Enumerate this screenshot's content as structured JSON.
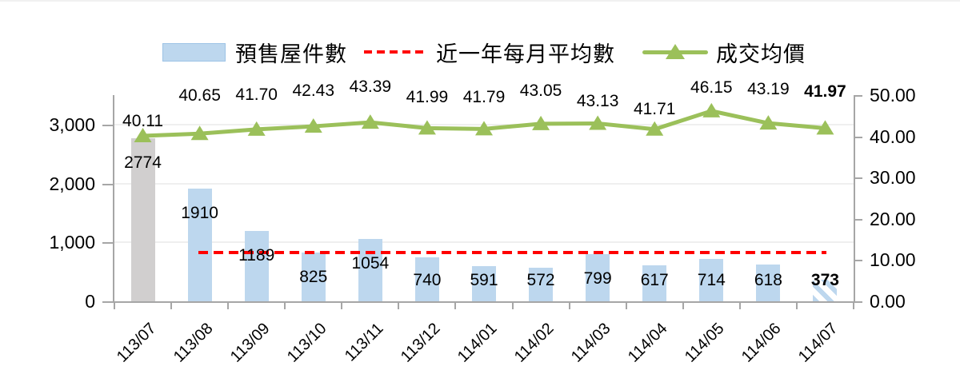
{
  "legend": {
    "bar_label": "預售屋件數",
    "avg_label": "近一年每月平均數",
    "price_label": "成交均價"
  },
  "colors": {
    "bar": "#BDD7EE",
    "bar_first": "#D1CFCF",
    "line": "#9BC05A",
    "avg_line": "#FF0000",
    "axis": "#A6A6A6",
    "grid": "#EFEFEF",
    "text": "#000000"
  },
  "chart_data": {
    "type": "combo-bar-line",
    "categories": [
      "113/07",
      "113/08",
      "113/09",
      "113/10",
      "113/11",
      "113/12",
      "114/01",
      "114/02",
      "114/03",
      "114/04",
      "114/05",
      "114/06",
      "114/07"
    ],
    "series": [
      {
        "name": "預售屋件數",
        "type": "bar",
        "axis": "left",
        "values": [
          2774,
          1910,
          1189,
          825,
          1054,
          740,
          591,
          572,
          799,
          617,
          714,
          618,
          373
        ],
        "labels": [
          "2774",
          "1910",
          "1189",
          "825",
          "1054",
          "740",
          "591",
          "572",
          "799",
          "617",
          "714",
          "618",
          "373"
        ],
        "first_bar_style": "solid-gray",
        "last_bar_style": "hatched",
        "last_label_bold": true
      },
      {
        "name": "近一年每月平均數",
        "type": "horizontal-dashed-line",
        "axis": "left",
        "value": 834,
        "from_category": "113/08",
        "to_category": "114/07"
      },
      {
        "name": "成交均價",
        "type": "line-triangle-markers",
        "axis": "right",
        "values": [
          40.11,
          40.65,
          41.7,
          42.43,
          43.39,
          41.99,
          41.79,
          43.05,
          43.13,
          41.71,
          46.15,
          43.19,
          41.97
        ],
        "labels": [
          "40.11",
          "40.65",
          "41.70",
          "42.43",
          "43.39",
          "41.99",
          "41.79",
          "43.05",
          "43.13",
          "41.71",
          "46.15",
          "43.19",
          "41.97"
        ],
        "last_label_bold": true
      }
    ],
    "left_axis": {
      "tick_labels": [
        "0",
        "1,000",
        "2,000",
        "3,000"
      ],
      "tick_values": [
        0,
        1000,
        2000,
        3000
      ],
      "range": [
        0,
        3500
      ]
    },
    "right_axis": {
      "tick_labels": [
        "0.00",
        "10.00",
        "20.00",
        "30.00",
        "40.00",
        "50.00"
      ],
      "tick_values": [
        0,
        10,
        20,
        30,
        40,
        50
      ],
      "range": [
        0,
        50
      ]
    },
    "grid_values": [
      1000,
      2000,
      3000
    ],
    "legend_position": "top"
  }
}
